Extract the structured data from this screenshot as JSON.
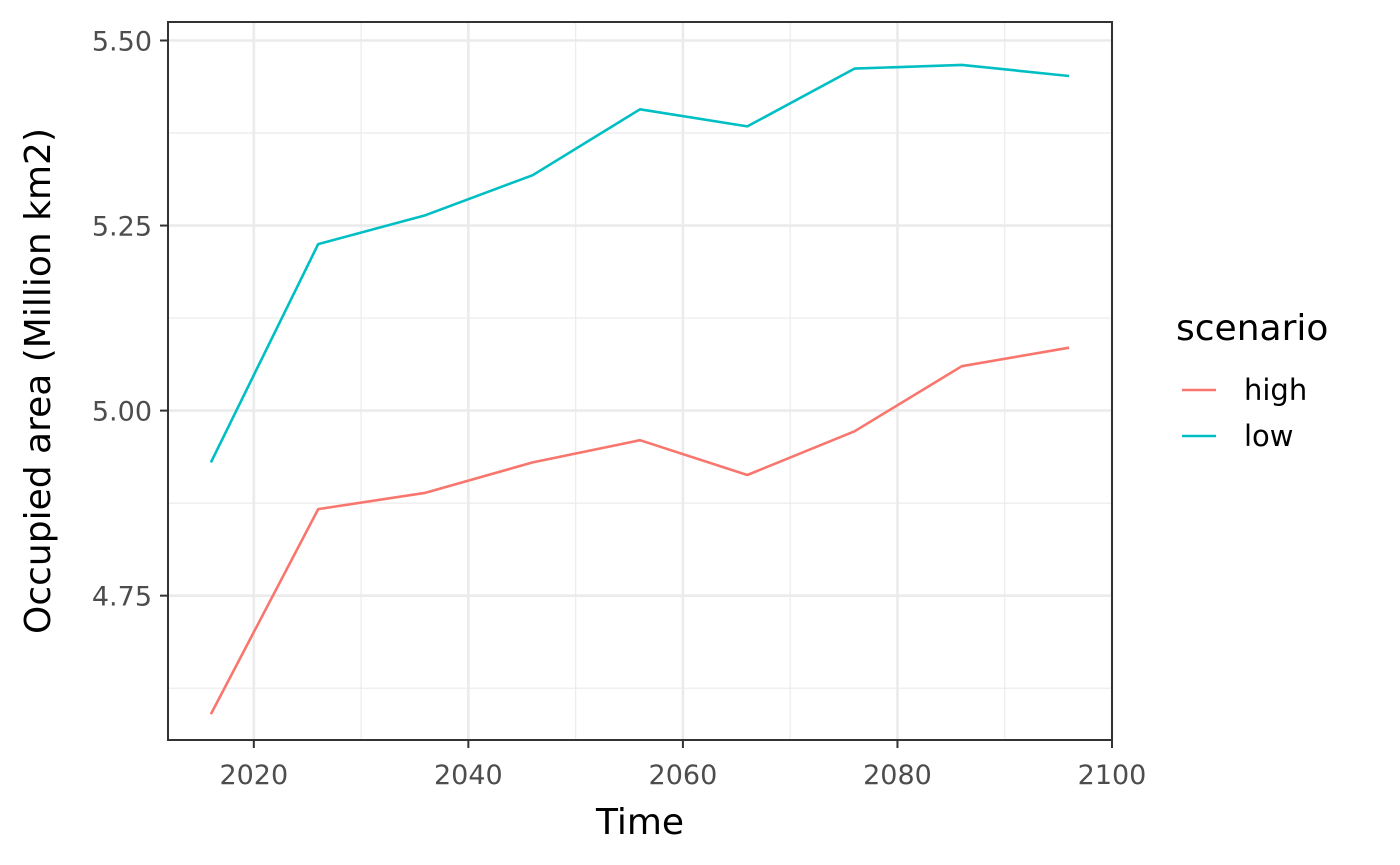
{
  "chart_data": {
    "type": "line",
    "title": "",
    "xlabel": "Time",
    "ylabel": "Occupied area (Million km2)",
    "xlim": [
      2012,
      2100
    ],
    "ylim": [
      4.555,
      5.525
    ],
    "x_ticks": [
      2020,
      2040,
      2060,
      2080,
      2100
    ],
    "x_tick_labels": [
      "2020",
      "2040",
      "2060",
      "2080",
      "2100"
    ],
    "x_minor_ticks": [
      2030,
      2050,
      2070,
      2090
    ],
    "y_ticks": [
      4.75,
      5.0,
      5.25,
      5.5
    ],
    "y_tick_labels": [
      "4.75",
      "5.00",
      "5.25",
      "5.50"
    ],
    "y_minor_ticks": [
      4.625,
      4.875,
      5.125,
      5.375
    ],
    "grid": true,
    "legend": {
      "title": "scenario",
      "placement": "right"
    },
    "x": [
      2016,
      2026,
      2036,
      2046,
      2056,
      2066,
      2076,
      2086,
      2096
    ],
    "series": [
      {
        "name": "high",
        "color": "#F8766D",
        "values": [
          4.59,
          4.867,
          4.889,
          4.93,
          4.96,
          4.913,
          4.972,
          5.06,
          5.085
        ]
      },
      {
        "name": "low",
        "color": "#00BFC4",
        "values": [
          4.93,
          5.225,
          5.264,
          5.318,
          5.407,
          5.384,
          5.462,
          5.467,
          5.452
        ]
      }
    ]
  }
}
